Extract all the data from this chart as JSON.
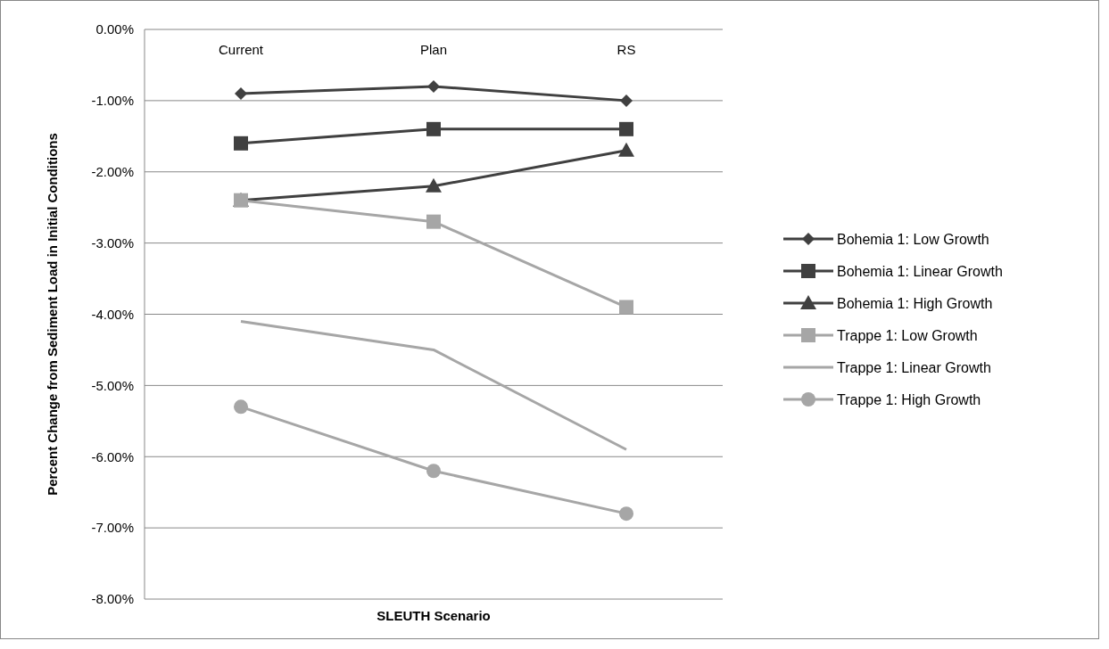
{
  "chart_data": {
    "type": "line",
    "xlabel": "SLEUTH Scenario",
    "ylabel": "Percent Change from  Sediment Load in Initial Conditions",
    "categories": [
      "Current",
      "Plan",
      "RS"
    ],
    "ylim": [
      -8,
      0
    ],
    "yticks": [
      {
        "value": 0,
        "label": "0.00%"
      },
      {
        "value": -1,
        "label": "-1.00%"
      },
      {
        "value": -2,
        "label": "-2.00%"
      },
      {
        "value": -3,
        "label": "-3.00%"
      },
      {
        "value": -4,
        "label": "-4.00%"
      },
      {
        "value": -5,
        "label": "-5.00%"
      },
      {
        "value": -6,
        "label": "-6.00%"
      },
      {
        "value": -7,
        "label": "-7.00%"
      },
      {
        "value": -8,
        "label": "-8.00%"
      }
    ],
    "grid": "y",
    "legend": "right",
    "series": [
      {
        "name": "Bohemia 1: Low Growth",
        "color": "#404040",
        "marker": "diamond",
        "values": [
          -0.9,
          -0.8,
          -1.0
        ]
      },
      {
        "name": "Bohemia 1: Linear Growth",
        "color": "#404040",
        "marker": "square",
        "values": [
          -1.6,
          -1.4,
          -1.4
        ]
      },
      {
        "name": "Bohemia 1: High Growth",
        "color": "#404040",
        "marker": "triangle",
        "values": [
          -2.4,
          -2.2,
          -1.7
        ]
      },
      {
        "name": "Trappe 1: Low Growth",
        "color": "#a6a6a6",
        "marker": "square",
        "values": [
          -2.4,
          -2.7,
          -3.9
        ]
      },
      {
        "name": "Trappe 1: Linear Growth",
        "color": "#a6a6a6",
        "marker": "none",
        "values": [
          -4.1,
          -4.5,
          -5.9
        ]
      },
      {
        "name": "Trappe 1: High Growth",
        "color": "#a6a6a6",
        "marker": "circle",
        "values": [
          -5.3,
          -6.2,
          -6.8
        ]
      }
    ]
  }
}
